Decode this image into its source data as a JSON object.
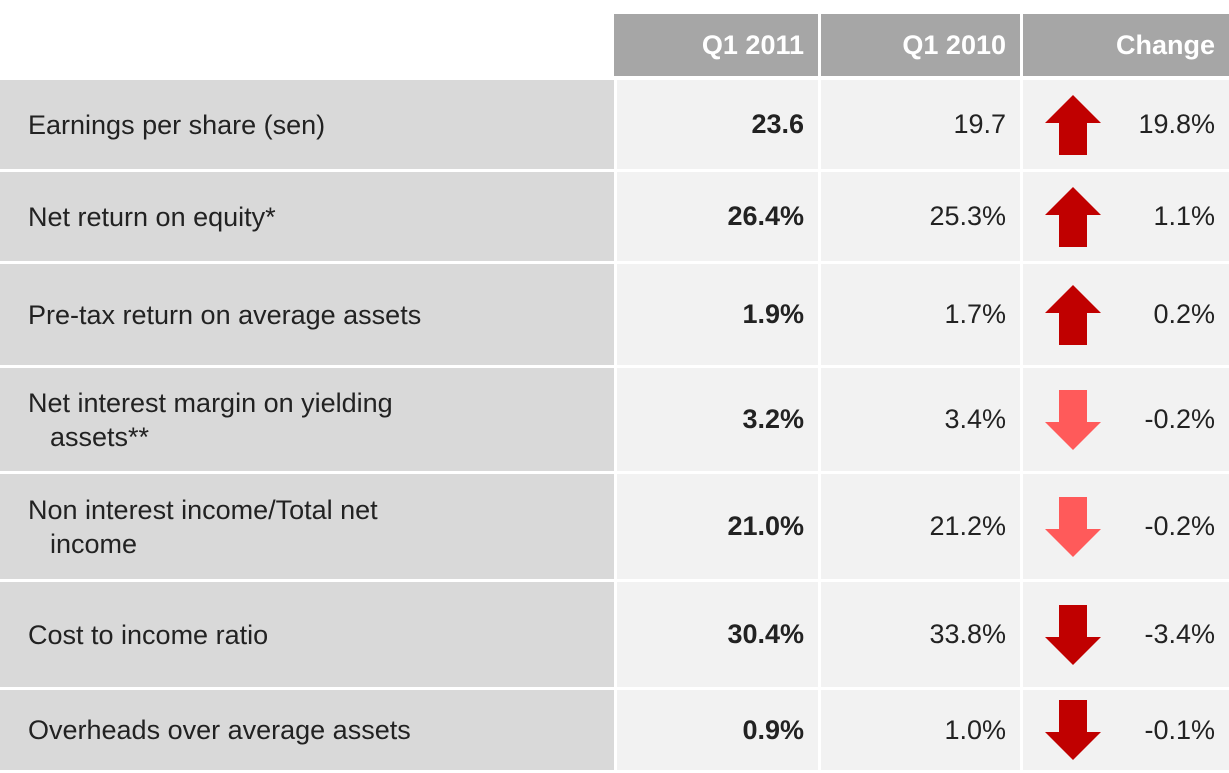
{
  "table": {
    "columns": [
      "Q1 2011",
      "Q1 2010",
      "Change"
    ],
    "rows": [
      {
        "label": [
          "Earnings per share (sen)"
        ],
        "q1_2011": "23.6",
        "q1_2010": "19.7",
        "arrow": "up",
        "arrow_color": "#c00000",
        "change": "19.8%"
      },
      {
        "label": [
          "Net return on equity*"
        ],
        "q1_2011": "26.4%",
        "q1_2010": "25.3%",
        "arrow": "up",
        "arrow_color": "#c00000",
        "change": "1.1%"
      },
      {
        "label": [
          "Pre-tax return on average assets"
        ],
        "q1_2011": "1.9%",
        "q1_2010": "1.7%",
        "arrow": "up",
        "arrow_color": "#c00000",
        "change": "0.2%"
      },
      {
        "label": [
          "Net interest margin on yielding",
          "assets**"
        ],
        "q1_2011": "3.2%",
        "q1_2010": "3.4%",
        "arrow": "down",
        "arrow_color": "#ff5a5a",
        "change": "-0.2%"
      },
      {
        "label": [
          "Non interest income/Total net",
          "income"
        ],
        "q1_2011": "21.0%",
        "q1_2010": "21.2%",
        "arrow": "down",
        "arrow_color": "#ff5a5a",
        "change": "-0.2%"
      },
      {
        "label": [
          "Cost to income ratio"
        ],
        "q1_2011": "30.4%",
        "q1_2010": "33.8%",
        "arrow": "down",
        "arrow_color": "#c00000",
        "change": "-3.4%"
      },
      {
        "label": [
          "Overheads over average assets"
        ],
        "q1_2011": "0.9%",
        "q1_2010": "1.0%",
        "arrow": "down",
        "arrow_color": "#c00000",
        "change": "-0.1%"
      }
    ]
  }
}
